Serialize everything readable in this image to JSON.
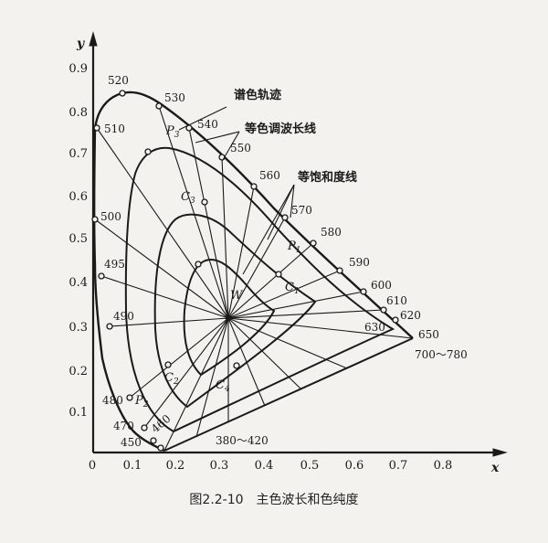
{
  "axes": {
    "x_name": "x",
    "y_name": "y",
    "x_ticks": [
      "0",
      "0.1",
      "0.2",
      "0.3",
      "0.4",
      "0.5",
      "0.6",
      "0.7",
      "0.8"
    ],
    "y_ticks": [
      "0.1",
      "0.2",
      "0.3",
      "0.4",
      "0.5",
      "0.6",
      "0.7",
      "0.8",
      "0.9"
    ]
  },
  "wavelength_labels": {
    "w380": "380～420",
    "w450": "450",
    "w460": "460",
    "w470": "470",
    "w480": "480",
    "w490": "490",
    "w495": "495",
    "w500": "500",
    "w510": "510",
    "w520": "520",
    "w530": "530",
    "w540": "540",
    "w550": "550",
    "w560": "560",
    "w570": "570",
    "w580": "580",
    "w590": "590",
    "w600": "600",
    "w610": "610",
    "w620": "620",
    "w630": "630",
    "w650": "650",
    "w700": "700～780"
  },
  "annotations": {
    "spectrum_locus": "谱色轨迹",
    "dominant_wavelength_lines": "等色调波长线",
    "saturation_lines": "等饱和度线"
  },
  "point_labels": {
    "W": "W",
    "P1": "P",
    "P1_sub": "1",
    "P2": "P",
    "P2_sub": "2",
    "P3": "P",
    "P3_sub": "3",
    "C1": "C",
    "C1_sub": "1",
    "C2": "C",
    "C2_sub": "2",
    "C3": "C",
    "C3_sub": "3",
    "C4": "C",
    "C4_sub": "4"
  },
  "caption": "图2.2-10　主色波长和色纯度"
}
